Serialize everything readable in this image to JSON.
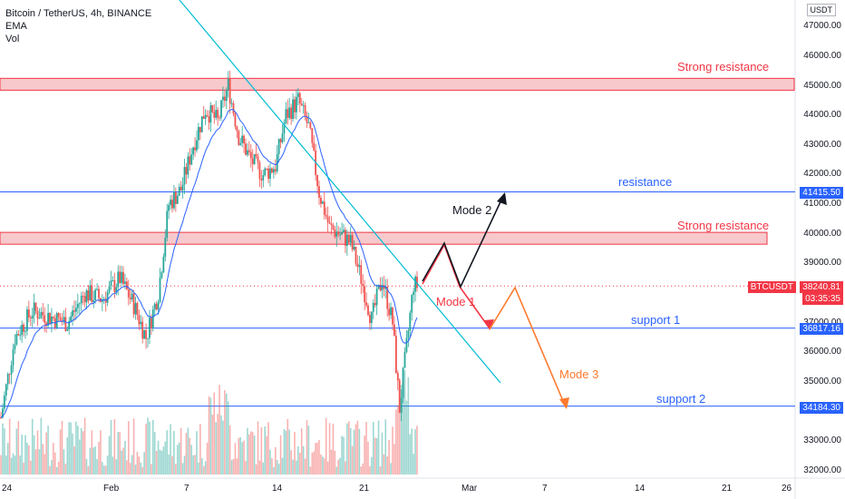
{
  "header": {
    "symbol_line": "Bitcoin / TetherUS, 4h, BINANCE",
    "indicator_1": "EMA",
    "indicator_2": "Vol"
  },
  "currency_button": "USDT",
  "price_axis": {
    "ticks": [
      "47000.00",
      "46000.00",
      "45000.00",
      "44000.00",
      "43000.00",
      "42000.00",
      "41000.00",
      "40000.00",
      "39000.00",
      "38000.00",
      "37000.00",
      "36000.00",
      "35000.00",
      "34000.00",
      "33000.00",
      "32000.00"
    ],
    "ylim": [
      32000,
      47000
    ]
  },
  "time_axis": {
    "ticks": [
      "24",
      "Feb",
      "7",
      "14",
      "21",
      "Mar",
      "7",
      "14",
      "21",
      "26"
    ]
  },
  "price_tags": {
    "resistance": {
      "value": "41415.50",
      "color": "#2962ff"
    },
    "current_symbol": "BTCUSDT",
    "current_price": "38240.81",
    "countdown": "03:35:35",
    "current_color": "#f23645",
    "support_1": {
      "value": "36817.16",
      "color": "#2962ff"
    },
    "support_2": {
      "value": "34184.30",
      "color": "#2962ff"
    }
  },
  "annotations": {
    "strong_resistance_top": "Strong resistance",
    "resistance": "resistance",
    "strong_resistance_mid": "Strong resistance",
    "support_1": "support 1",
    "support_2": "support 2",
    "mode_1": "Mode 1",
    "mode_2": "Mode 2",
    "mode_3": "Mode 3"
  },
  "levels": {
    "strong_resistance_zone_top": [
      44850,
      45250
    ],
    "resistance": 41415.5,
    "strong_resistance_zone_mid": [
      39650,
      40050
    ],
    "current_price": 38240.81,
    "support_1": 36817.16,
    "support_2": 34184.3
  },
  "colors": {
    "up": "#26a69a",
    "down": "#ef5350",
    "ema": "#2962ff",
    "trendline": "#00bcd4",
    "zone_fill": "#f7c9cc",
    "zone_border": "#f23645",
    "level_line": "#2962ff",
    "mode_1": "#f23645",
    "mode_2": "#131722",
    "mode_3": "#ff7a2f"
  },
  "chart_data": {
    "type": "candlestick",
    "candle_keypoints": [
      {
        "i": 0,
        "p": 33800
      },
      {
        "i": 8,
        "p": 36500
      },
      {
        "i": 18,
        "p": 37400
      },
      {
        "i": 28,
        "p": 37200
      },
      {
        "i": 38,
        "p": 37000
      },
      {
        "i": 48,
        "p": 38000
      },
      {
        "i": 58,
        "p": 37800
      },
      {
        "i": 68,
        "p": 38500
      },
      {
        "i": 76,
        "p": 37600
      },
      {
        "i": 83,
        "p": 36500
      },
      {
        "i": 90,
        "p": 38000
      },
      {
        "i": 96,
        "p": 41000
      },
      {
        "i": 103,
        "p": 41500
      },
      {
        "i": 110,
        "p": 43000
      },
      {
        "i": 117,
        "p": 44200
      },
      {
        "i": 124,
        "p": 43800
      },
      {
        "i": 130,
        "p": 45000
      },
      {
        "i": 136,
        "p": 43300
      },
      {
        "i": 143,
        "p": 42500
      },
      {
        "i": 150,
        "p": 42000
      },
      {
        "i": 157,
        "p": 42300
      },
      {
        "i": 163,
        "p": 44000
      },
      {
        "i": 170,
        "p": 44500
      },
      {
        "i": 176,
        "p": 43600
      },
      {
        "i": 182,
        "p": 41400
      },
      {
        "i": 188,
        "p": 40200
      },
      {
        "i": 194,
        "p": 40000
      },
      {
        "i": 200,
        "p": 39700
      },
      {
        "i": 206,
        "p": 38500
      },
      {
        "i": 212,
        "p": 37100
      },
      {
        "i": 218,
        "p": 38500
      },
      {
        "i": 224,
        "p": 37000
      },
      {
        "i": 228,
        "p": 34100
      },
      {
        "i": 232,
        "p": 36200
      },
      {
        "i": 236,
        "p": 38300
      },
      {
        "i": 238,
        "p": 38240
      }
    ]
  }
}
